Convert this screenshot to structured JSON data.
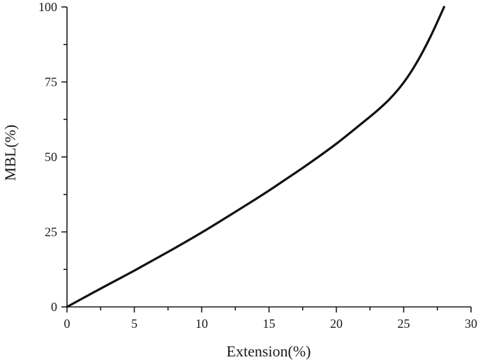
{
  "chart_data": {
    "type": "line",
    "title": "",
    "xlabel": "Extension(%)",
    "ylabel": "MBL(%)",
    "xlim": [
      0,
      30
    ],
    "ylim": [
      0,
      100
    ],
    "x_ticks": [
      0,
      5,
      10,
      15,
      20,
      25,
      30
    ],
    "y_ticks": [
      0,
      25,
      50,
      75,
      100
    ],
    "x_tick_labels": [
      "0",
      "5",
      "10",
      "15",
      "20",
      "25",
      "30"
    ],
    "y_tick_labels": [
      "0",
      "25",
      "50",
      "75",
      "100"
    ],
    "grid": false,
    "legend": "none",
    "series": [
      {
        "color": "#111111",
        "points": [
          [
            0,
            0
          ],
          [
            2,
            4.9
          ],
          [
            4,
            9.7
          ],
          [
            5,
            12.1
          ],
          [
            6,
            14.6
          ],
          [
            8,
            19.6
          ],
          [
            10,
            24.8
          ],
          [
            12,
            30.3
          ],
          [
            14,
            35.9
          ],
          [
            15,
            38.8
          ],
          [
            16,
            41.8
          ],
          [
            18,
            47.9
          ],
          [
            20,
            54.4
          ],
          [
            22,
            61.6
          ],
          [
            23,
            65.3
          ],
          [
            24,
            69.5
          ],
          [
            25,
            74.8
          ],
          [
            26,
            81.7
          ],
          [
            27,
            90.2
          ],
          [
            28,
            100
          ]
        ]
      }
    ]
  }
}
